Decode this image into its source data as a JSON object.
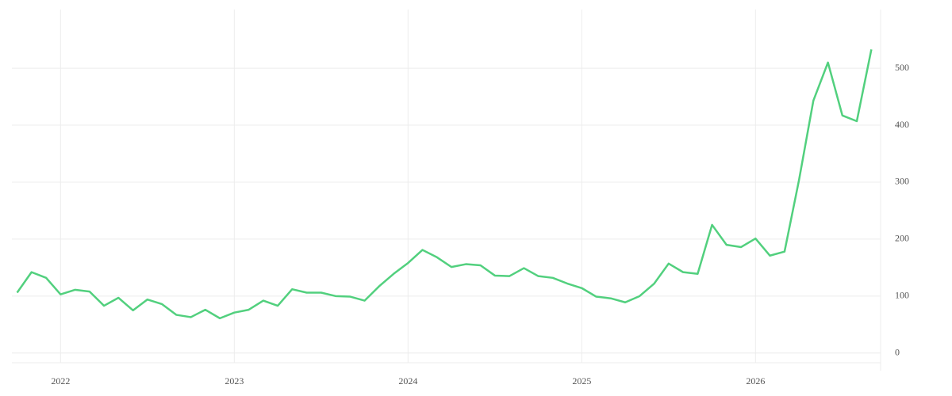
{
  "chart_data": {
    "type": "line",
    "x": [
      2021.75,
      2021.833,
      2021.917,
      2022,
      2022.083,
      2022.167,
      2022.25,
      2022.333,
      2022.417,
      2022.5,
      2022.583,
      2022.667,
      2022.75,
      2022.833,
      2022.917,
      2023,
      2023.083,
      2023.167,
      2023.25,
      2023.333,
      2023.417,
      2023.5,
      2023.583,
      2023.667,
      2023.75,
      2023.833,
      2023.917,
      2024,
      2024.083,
      2024.167,
      2024.25,
      2024.333,
      2024.417,
      2024.5,
      2024.583,
      2024.667,
      2024.75,
      2024.833,
      2024.917,
      2025,
      2025.083,
      2025.167,
      2025.25,
      2025.333,
      2025.417,
      2025.5,
      2025.583,
      2025.667,
      2025.75,
      2025.833,
      2025.917,
      2026,
      2026.083,
      2026.167,
      2026.25,
      2026.333,
      2026.417,
      2026.5,
      2026.583,
      2026.667
    ],
    "series": [
      {
        "color": "#52d07e",
        "values": [
          106,
          142,
          132,
          103,
          111,
          108,
          83,
          97,
          75,
          94,
          86,
          67,
          63,
          76,
          61,
          71,
          76,
          92,
          83,
          112,
          106,
          106,
          100,
          99,
          92,
          117,
          139,
          158,
          181,
          168,
          151,
          156,
          154,
          136,
          135,
          149,
          135,
          132,
          122,
          114,
          99,
          96,
          89,
          100,
          122,
          157,
          142,
          139,
          225,
          190,
          186,
          201,
          171,
          178,
          303,
          443,
          510,
          417,
          407,
          533
        ]
      }
    ],
    "xlim": [
      2021.72,
      2026.72
    ],
    "xticks": [
      2022,
      2023,
      2024,
      2025,
      2026
    ],
    "ylim": [
      -17,
      603
    ],
    "yticks": [
      0,
      100,
      200,
      300,
      400,
      500
    ],
    "grid": true
  }
}
